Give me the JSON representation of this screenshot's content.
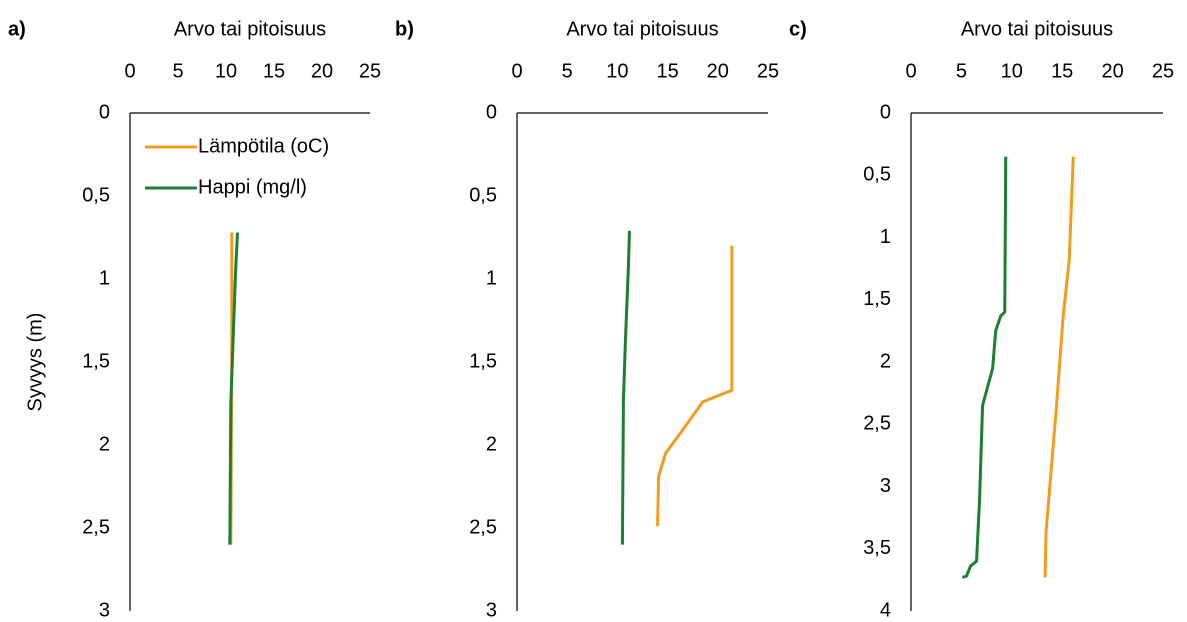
{
  "chart_data": [
    {
      "type": "line",
      "panel": "a)",
      "xlabel": "Arvo tai pitoisuus",
      "ylabel": "Syvyys (m)",
      "xlim": [
        0,
        25
      ],
      "xticks": [
        0,
        5,
        10,
        15,
        20,
        25
      ],
      "ylim": [
        0,
        3
      ],
      "inverted_y": true,
      "yticks": [
        0,
        {
          "value": 0.5,
          "label": "0,5"
        },
        1,
        {
          "value": 1.5,
          "label": "1,5"
        },
        2,
        {
          "value": 2.5,
          "label": "2,5"
        },
        3
      ],
      "legend": "upper left",
      "series": [
        {
          "name": "Lämpötila (oC)",
          "color": "#f29b1d",
          "values": [
            10.6,
            10.6,
            10.5
          ],
          "y": [
            0.72,
            1.5,
            2.6
          ]
        },
        {
          "name": "Happi (mg/l)",
          "color": "#1e7e34",
          "values": [
            11.2,
            11.0,
            10.5,
            10.4
          ],
          "y": [
            0.72,
            0.95,
            1.75,
            2.6
          ]
        }
      ]
    },
    {
      "type": "line",
      "panel": "b)",
      "xlabel": "Arvo tai pitoisuus",
      "xlim": [
        0,
        25
      ],
      "xticks": [
        0,
        5,
        10,
        15,
        20,
        25
      ],
      "ylim": [
        0,
        3
      ],
      "inverted_y": true,
      "yticks": [
        0,
        {
          "value": 0.5,
          "label": "0,5"
        },
        1,
        {
          "value": 1.5,
          "label": "1,5"
        },
        2,
        {
          "value": 2.5,
          "label": "2,5"
        },
        3
      ],
      "series": [
        {
          "color": "#f29b1d",
          "values": [
            21.4,
            21.4,
            18.5,
            16.5,
            14.8,
            14.1,
            14.0
          ],
          "y": [
            0.8,
            1.67,
            1.74,
            1.91,
            2.05,
            2.19,
            2.49
          ]
        },
        {
          "color": "#1e7e34",
          "values": [
            11.2,
            11.1,
            10.8,
            10.6,
            10.5
          ],
          "y": [
            0.71,
            0.92,
            1.37,
            1.73,
            2.6
          ]
        }
      ]
    },
    {
      "type": "line",
      "panel": "c)",
      "xlabel": "Arvo tai pitoisuus",
      "xlim": [
        0,
        25
      ],
      "xticks": [
        0,
        5,
        10,
        15,
        20,
        25
      ],
      "ylim": [
        0,
        4
      ],
      "inverted_y": true,
      "yticks": [
        0,
        {
          "value": 0.5,
          "label": "0,5"
        },
        1,
        {
          "value": 1.5,
          "label": "1,5"
        },
        2,
        {
          "value": 2.5,
          "label": "2,5"
        },
        3,
        {
          "value": 3.5,
          "label": "3,5"
        },
        4
      ],
      "series": [
        {
          "color": "#f29b1d",
          "values": [
            16.1,
            15.7,
            15.1,
            14.4,
            13.4,
            13.3
          ],
          "y": [
            0.35,
            1.18,
            1.63,
            2.39,
            3.36,
            3.73
          ]
        },
        {
          "color": "#1e7e34",
          "values": [
            9.4,
            9.3,
            8.9,
            8.4,
            8.1,
            7.1,
            6.8,
            6.5,
            5.9,
            5.5,
            5.1
          ],
          "y": [
            0.35,
            1.6,
            1.63,
            1.75,
            2.05,
            2.35,
            3.11,
            3.6,
            3.64,
            3.72,
            3.73
          ]
        }
      ]
    }
  ]
}
